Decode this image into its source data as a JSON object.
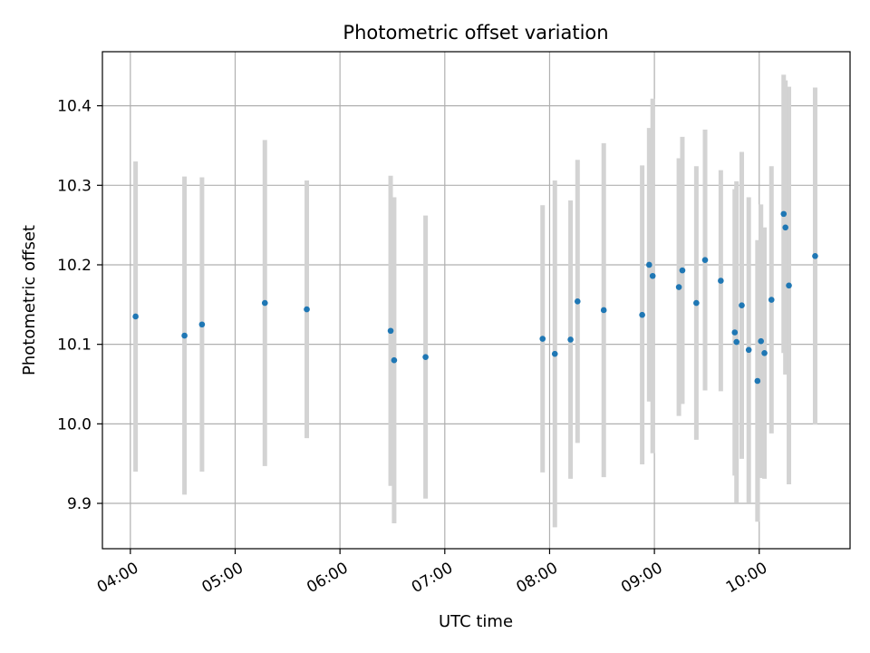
{
  "chart_data": {
    "type": "scatter",
    "title": "Photometric offset variation",
    "xlabel": "UTC time",
    "ylabel": "Photometric offset",
    "x_ticks": [
      "04:00",
      "05:00",
      "06:00",
      "07:00",
      "08:00",
      "09:00",
      "10:00"
    ],
    "y_ticks": [
      "9.9",
      "10.0",
      "10.1",
      "10.2",
      "10.3",
      "10.4"
    ],
    "xlim": [
      "03:44",
      "10:52"
    ],
    "ylim": [
      9.843,
      10.468
    ],
    "grid": true,
    "point_color": "#1f77b4",
    "errorbar_color": "#d3d3d3",
    "points": [
      {
        "x": "04:03",
        "y": 10.135,
        "err": 0.195
      },
      {
        "x": "04:31",
        "y": 10.111,
        "err": 0.2
      },
      {
        "x": "04:41",
        "y": 10.125,
        "err": 0.185
      },
      {
        "x": "05:17",
        "y": 10.152,
        "err": 0.205
      },
      {
        "x": "05:41",
        "y": 10.144,
        "err": 0.162
      },
      {
        "x": "06:29",
        "y": 10.117,
        "err": 0.195
      },
      {
        "x": "06:31",
        "y": 10.08,
        "err": 0.205
      },
      {
        "x": "06:49",
        "y": 10.084,
        "err": 0.178
      },
      {
        "x": "07:56",
        "y": 10.107,
        "err": 0.168
      },
      {
        "x": "08:03",
        "y": 10.088,
        "err": 0.218
      },
      {
        "x": "08:12",
        "y": 10.106,
        "err": 0.175
      },
      {
        "x": "08:16",
        "y": 10.154,
        "err": 0.178
      },
      {
        "x": "08:31",
        "y": 10.143,
        "err": 0.21
      },
      {
        "x": "08:53",
        "y": 10.137,
        "err": 0.188
      },
      {
        "x": "08:57",
        "y": 10.2,
        "err": 0.172
      },
      {
        "x": "08:59",
        "y": 10.186,
        "err": 0.223
      },
      {
        "x": "09:14",
        "y": 10.172,
        "err": 0.162
      },
      {
        "x": "09:16",
        "y": 10.193,
        "err": 0.168
      },
      {
        "x": "09:24",
        "y": 10.152,
        "err": 0.172
      },
      {
        "x": "09:29",
        "y": 10.206,
        "err": 0.164
      },
      {
        "x": "09:38",
        "y": 10.18,
        "err": 0.139
      },
      {
        "x": "09:46",
        "y": 10.115,
        "err": 0.18
      },
      {
        "x": "09:47",
        "y": 10.103,
        "err": 0.202
      },
      {
        "x": "09:50",
        "y": 10.149,
        "err": 0.193
      },
      {
        "x": "09:54",
        "y": 10.093,
        "err": 0.192
      },
      {
        "x": "09:59",
        "y": 10.054,
        "err": 0.177
      },
      {
        "x": "10:01",
        "y": 10.104,
        "err": 0.172
      },
      {
        "x": "10:03",
        "y": 10.089,
        "err": 0.158
      },
      {
        "x": "10:07",
        "y": 10.156,
        "err": 0.168
      },
      {
        "x": "10:14",
        "y": 10.264,
        "err": 0.175
      },
      {
        "x": "10:15",
        "y": 10.247,
        "err": 0.185
      },
      {
        "x": "10:17",
        "y": 10.174,
        "err": 0.25
      },
      {
        "x": "10:32",
        "y": 10.211,
        "err": 0.212
      }
    ]
  }
}
